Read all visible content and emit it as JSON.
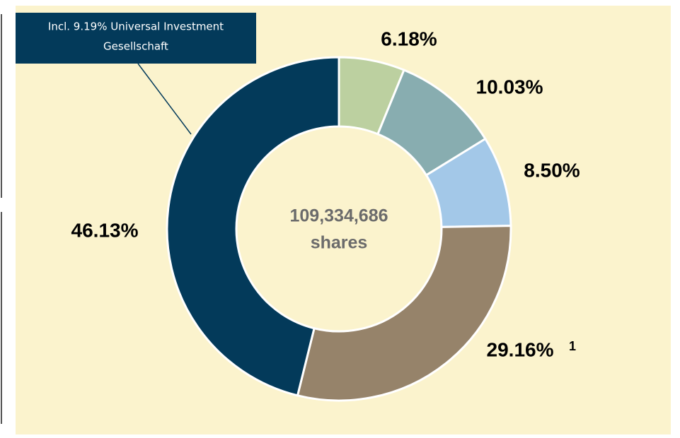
{
  "chart_data": {
    "type": "donut",
    "values": [
      6.18,
      10.03,
      8.5,
      29.16,
      46.13
    ],
    "value_labels": [
      "6.18%",
      "10.03%",
      "8.50%",
      "29.16%",
      "46.13%"
    ],
    "colors": [
      "#bcd0a0",
      "#88adb0",
      "#a3c8e8",
      "#96836a",
      "#033a5a"
    ],
    "center_text": [
      "109,334,686",
      "shares"
    ],
    "footnote_mark": "1",
    "annotation": [
      "Incl. 9.19% Universal Investment",
      "Gesellschaft"
    ]
  }
}
